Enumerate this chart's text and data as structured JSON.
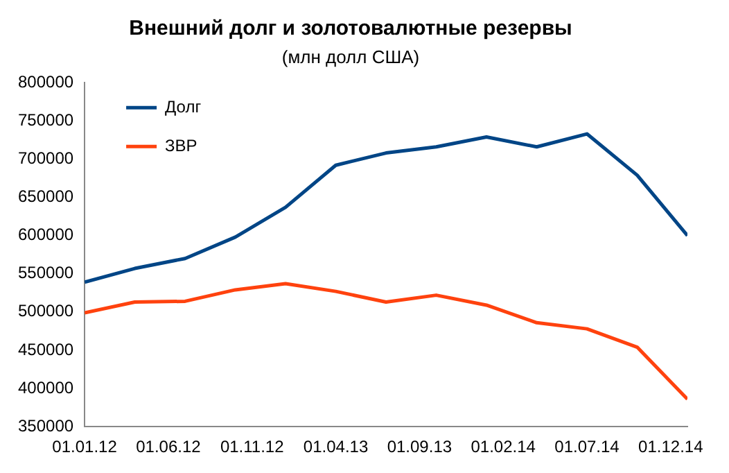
{
  "chart_data": {
    "type": "line",
    "title": "Внешний долг и золотовалютные резервы",
    "subtitle": "(млн долл США)",
    "x": [
      "2012-01-01",
      "2012-04-01",
      "2012-07-01",
      "2012-10-01",
      "2013-01-01",
      "2013-04-01",
      "2013-07-01",
      "2013-10-01",
      "2014-01-01",
      "2014-04-01",
      "2014-07-01",
      "2014-10-01",
      "2015-01-01"
    ],
    "series": [
      {
        "name": "Долг",
        "color": "#004586",
        "values": [
          539000,
          557000,
          570000,
          598000,
          637000,
          692000,
          708000,
          716000,
          729000,
          716000,
          733000,
          679000,
          600000
        ]
      },
      {
        "name": "ЗВР",
        "color": "#ff420e",
        "values": [
          499000,
          513000,
          514000,
          529000,
          537000,
          527000,
          513000,
          522000,
          509000,
          486000,
          478000,
          454000,
          386000
        ]
      }
    ],
    "xlim": [
      "2012-01-01",
      "2015-01-01"
    ],
    "xticks": [
      {
        "value": "2012-01-01",
        "label": "01.01.12"
      },
      {
        "value": "2012-06-01",
        "label": "01.06.12"
      },
      {
        "value": "2012-11-01",
        "label": "01.11.12"
      },
      {
        "value": "2013-04-01",
        "label": "01.04.13"
      },
      {
        "value": "2013-09-01",
        "label": "01.09.13"
      },
      {
        "value": "2014-02-01",
        "label": "01.02.14"
      },
      {
        "value": "2014-07-01",
        "label": "01.07.14"
      },
      {
        "value": "2014-12-01",
        "label": "01.12.14"
      }
    ],
    "ylim": [
      350000,
      800000
    ],
    "yticks": [
      350000,
      400000,
      450000,
      500000,
      550000,
      600000,
      650000,
      700000,
      750000,
      800000
    ],
    "grid": false,
    "legend": "top left",
    "marker": "none",
    "line_style": "solid"
  }
}
